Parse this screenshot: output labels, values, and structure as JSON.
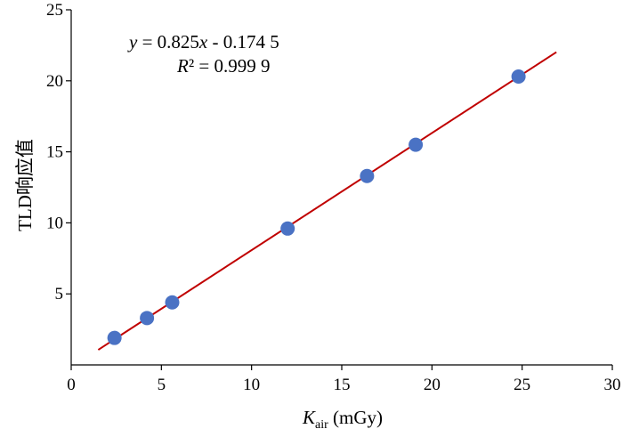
{
  "chart_data": {
    "type": "scatter",
    "xlabel": {
      "symbol": "K",
      "subscript": "air",
      "unit": " (mGy)"
    },
    "ylabel": "TLD响应值",
    "xlim": [
      0,
      30
    ],
    "ylim": [
      0,
      25
    ],
    "x_ticks": [
      0,
      5,
      10,
      15,
      20,
      25,
      30
    ],
    "y_ticks": [
      5,
      10,
      15,
      20,
      25
    ],
    "grid": false,
    "legend": "none",
    "series": [
      {
        "points": [
          {
            "x": 2.4,
            "y": 1.9
          },
          {
            "x": 4.2,
            "y": 3.3
          },
          {
            "x": 5.6,
            "y": 4.4
          },
          {
            "x": 12.0,
            "y": 9.6
          },
          {
            "x": 16.4,
            "y": 13.3
          },
          {
            "x": 19.1,
            "y": 15.5
          },
          {
            "x": 24.8,
            "y": 20.3
          }
        ]
      }
    ],
    "trendline": {
      "slope": 0.825,
      "intercept": -0.1745,
      "x_range": [
        1.5,
        26.9
      ]
    },
    "annotations": {
      "equation": {
        "y": "y",
        "eq": " = 0.825",
        "x": "x",
        "rest": " - 0.174 5"
      },
      "r2": {
        "r": "R",
        "rest": "² = 0.999 9"
      }
    },
    "colors": {
      "points": "#4a72c4",
      "trendline": "#c00000",
      "axis": "#000000"
    }
  }
}
